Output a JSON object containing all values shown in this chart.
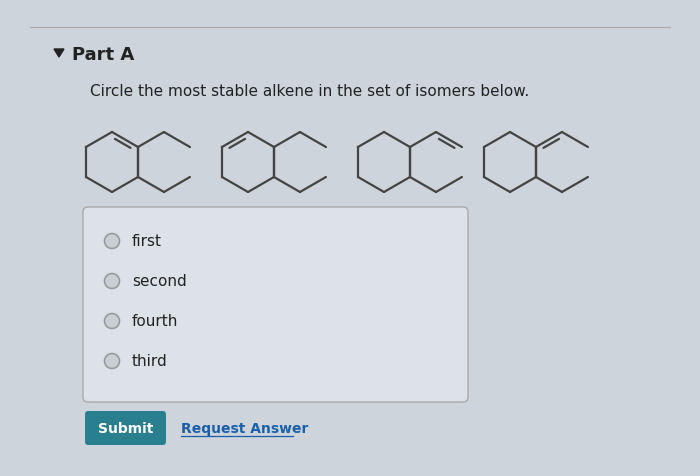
{
  "bg_color": "#cdd4db",
  "content_bg": "#e2e7ec",
  "title": "Part A",
  "question": "Circle the most stable alkene in the set of isomers below.",
  "choices": [
    "first",
    "second",
    "fourth",
    "third"
  ],
  "submit_label": "Submit",
  "submit_bg": "#2a7f8f",
  "submit_text_color": "#ffffff",
  "request_label": "Request Answer",
  "box_border_color": "#aaaaaa",
  "text_color": "#222222",
  "radio_color": "#888888",
  "hex_color": "#444444",
  "link_color": "#1a5fa8"
}
